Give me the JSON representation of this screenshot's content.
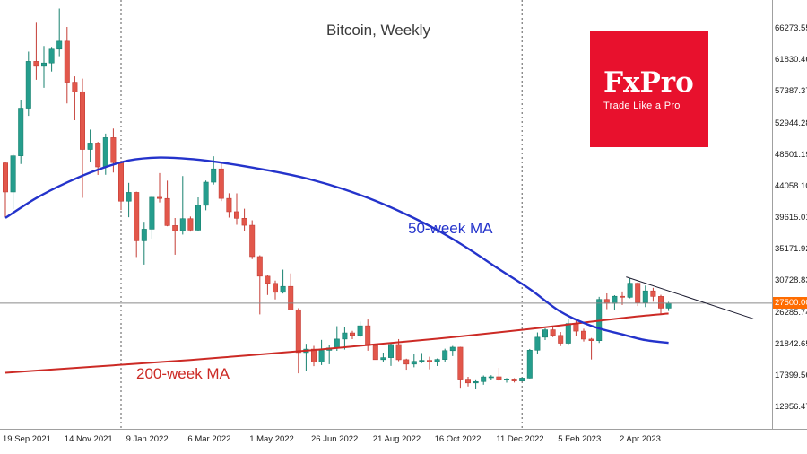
{
  "title": "Bitcoin, Weekly",
  "labels": {
    "ma50": "50-week MA",
    "ma200": "200-week MA"
  },
  "logo": {
    "name": "FxPro",
    "tagline": "Trade Like a Pro",
    "bg": "#e8112d"
  },
  "colors": {
    "up": "#259d8d",
    "up_border": "#17816f",
    "down": "#e2574b",
    "down_border": "#c43d36",
    "ma50": "#2433cb",
    "ma200": "#cc2a25",
    "price_line": "#8a8a8a",
    "badge_bg": "#ff6c00",
    "trendline": "#1c1c30",
    "separator": "#5a5a5a"
  },
  "price_axis": {
    "current": "27500.00",
    "ticks": [
      "66273.55",
      "61830.46",
      "57387.37",
      "52944.28",
      "48501.19",
      "44058.10",
      "39615.01",
      "35171.92",
      "30728.83",
      "26285.74",
      "21842.65",
      "17399.56",
      "12956.47"
    ]
  },
  "time_axis": {
    "ticks": [
      {
        "week": 0,
        "label": "19 Sep 2021"
      },
      {
        "week": 8,
        "label": "14 Nov 2021"
      },
      {
        "week": 16,
        "label": "9 Jan 2022"
      },
      {
        "week": 24,
        "label": "6 Mar 2022"
      },
      {
        "week": 32,
        "label": "1 May 2022"
      },
      {
        "week": 40,
        "label": "26 Jun 2022"
      },
      {
        "week": 48,
        "label": "21 Aug 2022"
      },
      {
        "week": 56,
        "label": "16 Oct 2022"
      },
      {
        "week": 64,
        "label": "11 Dec 2022"
      },
      {
        "week": 72,
        "label": "5 Feb 2023"
      },
      {
        "week": 80,
        "label": "2 Apr 2023"
      }
    ]
  },
  "chart_data": {
    "type": "candlestick",
    "title": "Bitcoin, Weekly",
    "timeframe": "weekly",
    "start_date": "19 Sep 2021",
    "current_price": 27500,
    "ylim": [
      9800,
      70190
    ],
    "year_separator_weeks": [
      15,
      67
    ],
    "trendline": [
      [
        80.5,
        31200
      ],
      [
        97,
        25300
      ]
    ],
    "candles_ohlc": [
      [
        47250,
        47350,
        39600,
        43160
      ],
      [
        43160,
        48495,
        40750,
        48250
      ],
      [
        48250,
        56100,
        47100,
        54960
      ],
      [
        54960,
        62930,
        53880,
        61550
      ],
      [
        61550,
        66990,
        58960,
        60860
      ],
      [
        60860,
        63720,
        57820,
        61320
      ],
      [
        61320,
        63590,
        60120,
        63270
      ],
      [
        63270,
        68990,
        62280,
        64400
      ],
      [
        64400,
        66400,
        55630,
        58620
      ],
      [
        58620,
        59440,
        53260,
        57270
      ],
      [
        57270,
        59120,
        42330,
        49150
      ],
      [
        49150,
        51940,
        47320,
        50050
      ],
      [
        50050,
        50210,
        45560,
        46690
      ],
      [
        46690,
        51380,
        45580,
        50810
      ],
      [
        50810,
        52090,
        45900,
        47300
      ],
      [
        47300,
        47570,
        40610,
        41860
      ],
      [
        41860,
        44440,
        39600,
        43100
      ],
      [
        43100,
        43200,
        34000,
        36280
      ],
      [
        36280,
        38960,
        32930,
        37920
      ],
      [
        37920,
        42660,
        36590,
        42410
      ],
      [
        42410,
        45820,
        41690,
        42240
      ],
      [
        42240,
        44750,
        38330,
        38430
      ],
      [
        38430,
        39490,
        34320,
        37710
      ],
      [
        37710,
        45400,
        37160,
        39400
      ],
      [
        39400,
        39700,
        37580,
        37790
      ],
      [
        37790,
        42400,
        37680,
        41280
      ],
      [
        41280,
        44770,
        40580,
        44540
      ],
      [
        44540,
        48190,
        44200,
        46410
      ],
      [
        46410,
        47210,
        41870,
        42250
      ],
      [
        42250,
        42980,
        39550,
        40380
      ],
      [
        40380,
        42970,
        38540,
        39450
      ],
      [
        39450,
        40800,
        37700,
        38470
      ],
      [
        38470,
        39170,
        33710,
        34060
      ],
      [
        34060,
        34240,
        25920,
        31300
      ],
      [
        31300,
        31420,
        28650,
        30290
      ],
      [
        30290,
        30670,
        28020,
        29030
      ],
      [
        29030,
        32220,
        28860,
        29860
      ],
      [
        29860,
        31690,
        26560,
        26570
      ],
      [
        26570,
        26800,
        17620,
        20550
      ],
      [
        20550,
        21780,
        17960,
        21030
      ],
      [
        21030,
        21480,
        18630,
        19240
      ],
      [
        19240,
        22330,
        18780,
        20860
      ],
      [
        20860,
        21580,
        18910,
        21200
      ],
      [
        21200,
        24260,
        20790,
        22450
      ],
      [
        22450,
        24190,
        20970,
        23310
      ],
      [
        23310,
        23600,
        22440,
        22960
      ],
      [
        22960,
        24910,
        22670,
        24310
      ],
      [
        24310,
        25200,
        20810,
        21520
      ],
      [
        21520,
        21800,
        19530,
        19550
      ],
      [
        19550,
        20540,
        19280,
        19830
      ],
      [
        19830,
        21860,
        18660,
        21680
      ],
      [
        21680,
        22440,
        19330,
        19540
      ],
      [
        19540,
        19680,
        18130,
        18920
      ],
      [
        18920,
        20380,
        18470,
        19310
      ],
      [
        19310,
        20480,
        19060,
        19450
      ],
      [
        19450,
        19950,
        18190,
        19270
      ],
      [
        19270,
        19710,
        18650,
        19570
      ],
      [
        19570,
        21090,
        19160,
        20820
      ],
      [
        20820,
        21480,
        20050,
        21300
      ],
      [
        21300,
        21360,
        15590,
        16800
      ],
      [
        16800,
        17130,
        15770,
        16270
      ],
      [
        16270,
        16770,
        15480,
        16460
      ],
      [
        16460,
        17320,
        16010,
        17110
      ],
      [
        17110,
        17360,
        16680,
        17130
      ],
      [
        17130,
        18390,
        16570,
        16740
      ],
      [
        16740,
        16960,
        16310,
        16830
      ],
      [
        16830,
        16940,
        16330,
        16540
      ],
      [
        16540,
        17040,
        16490,
        16950
      ],
      [
        16950,
        21050,
        16900,
        20880
      ],
      [
        20880,
        23375,
        20370,
        22710
      ],
      [
        22710,
        23950,
        22300,
        23750
      ],
      [
        23750,
        24260,
        22720,
        22960
      ],
      [
        22960,
        23440,
        21450,
        21860
      ],
      [
        21860,
        25250,
        21540,
        24630
      ],
      [
        24630,
        25100,
        22850,
        23560
      ],
      [
        23560,
        23900,
        22100,
        22440
      ],
      [
        22440,
        22600,
        19570,
        22220
      ],
      [
        22220,
        28390,
        21900,
        28030
      ],
      [
        28030,
        28880,
        26660,
        27480
      ],
      [
        27480,
        28620,
        26520,
        28470
      ],
      [
        28470,
        29150,
        27250,
        28330
      ],
      [
        28330,
        31010,
        28180,
        30310
      ],
      [
        30310,
        30440,
        27100,
        27590
      ],
      [
        27590,
        29980,
        26950,
        29230
      ],
      [
        29230,
        29660,
        27700,
        28450
      ],
      [
        28450,
        28670,
        25850,
        26800
      ],
      [
        26800,
        27680,
        26400,
        27500
      ]
    ],
    "ma50_points": [
      [
        0,
        39500
      ],
      [
        4,
        42300
      ],
      [
        8,
        44500
      ],
      [
        12,
        46300
      ],
      [
        16,
        47600
      ],
      [
        20,
        48000
      ],
      [
        24,
        47800
      ],
      [
        28,
        47300
      ],
      [
        32,
        46600
      ],
      [
        36,
        45800
      ],
      [
        40,
        44800
      ],
      [
        44,
        43500
      ],
      [
        48,
        41900
      ],
      [
        52,
        40000
      ],
      [
        56,
        37800
      ],
      [
        60,
        35200
      ],
      [
        64,
        32300
      ],
      [
        68,
        29500
      ],
      [
        72,
        26300
      ],
      [
        76,
        24300
      ],
      [
        80,
        23100
      ],
      [
        83,
        22300
      ],
      [
        86,
        21900
      ]
    ],
    "ma200_points": [
      [
        0,
        17700
      ],
      [
        8,
        18300
      ],
      [
        16,
        18900
      ],
      [
        24,
        19500
      ],
      [
        32,
        20200
      ],
      [
        40,
        20900
      ],
      [
        48,
        21700
      ],
      [
        56,
        22500
      ],
      [
        64,
        23400
      ],
      [
        70,
        24100
      ],
      [
        76,
        24900
      ],
      [
        80,
        25400
      ],
      [
        83,
        25750
      ],
      [
        86,
        26050
      ]
    ]
  }
}
